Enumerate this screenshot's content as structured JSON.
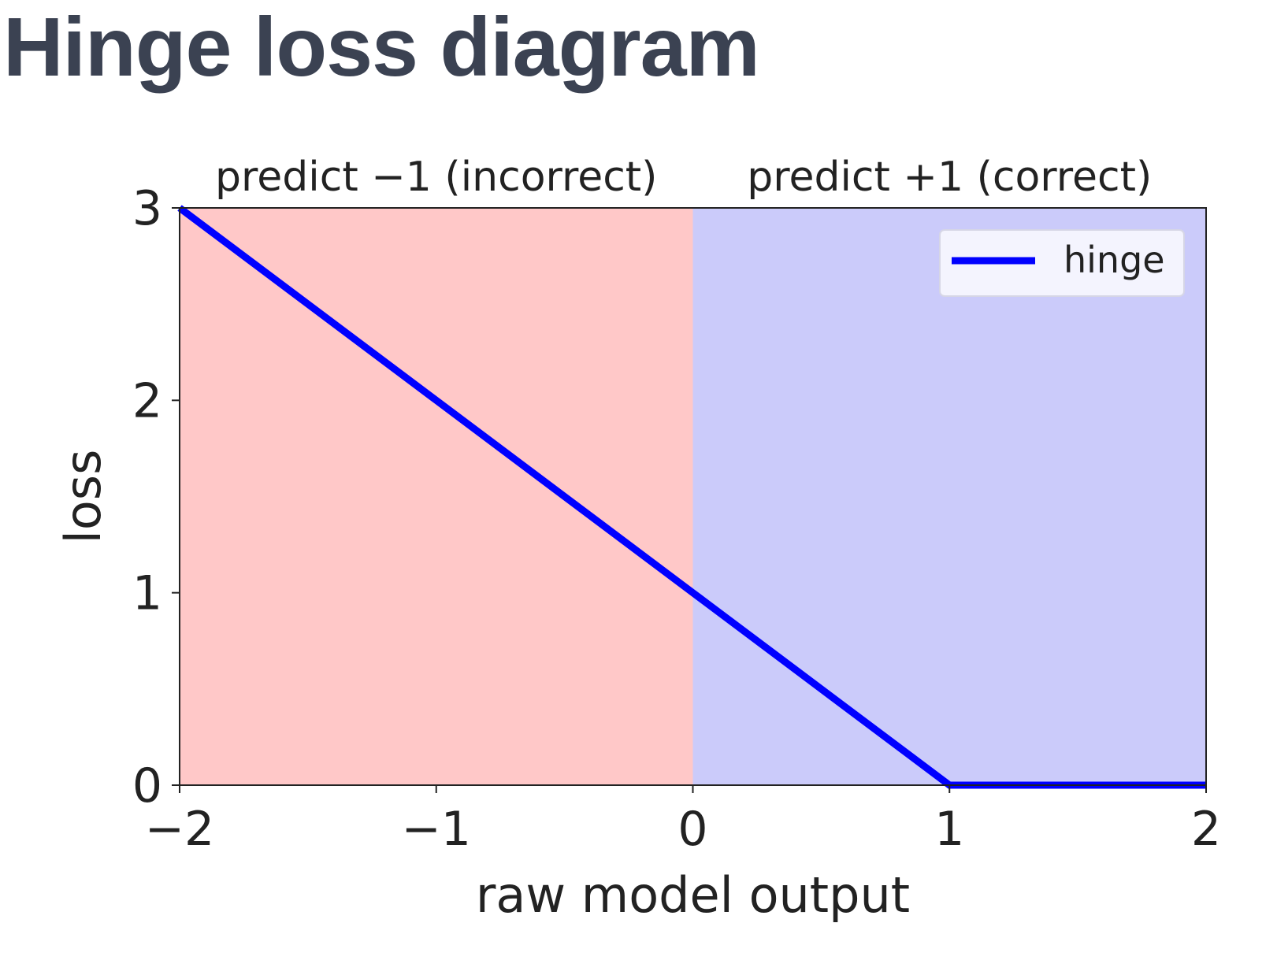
{
  "page": {
    "title": "Hinge loss diagram"
  },
  "chart_data": {
    "type": "line",
    "title": "",
    "xlabel": "raw model output",
    "ylabel": "loss",
    "xlim": [
      -2,
      2
    ],
    "ylim": [
      0,
      3
    ],
    "x_ticks": [
      -2,
      -1,
      0,
      1,
      2
    ],
    "x_tick_labels": [
      "−2",
      "−1",
      "0",
      "1",
      "2"
    ],
    "y_ticks": [
      0,
      1,
      2,
      3
    ],
    "y_tick_labels": [
      "0",
      "1",
      "2",
      "3"
    ],
    "grid": false,
    "legend_position": "top-right",
    "regions": [
      {
        "label": "predict −1 (incorrect)",
        "x_range": [
          -2,
          0
        ],
        "color": "#ffc8c8"
      },
      {
        "label": "predict +1 (correct)",
        "x_range": [
          0,
          2
        ],
        "color": "#cbcbfa"
      }
    ],
    "series": [
      {
        "name": "hinge",
        "color": "#0000ff",
        "x": [
          -2,
          -1,
          0,
          1,
          2
        ],
        "y": [
          3,
          2,
          1,
          0,
          0
        ]
      }
    ]
  }
}
